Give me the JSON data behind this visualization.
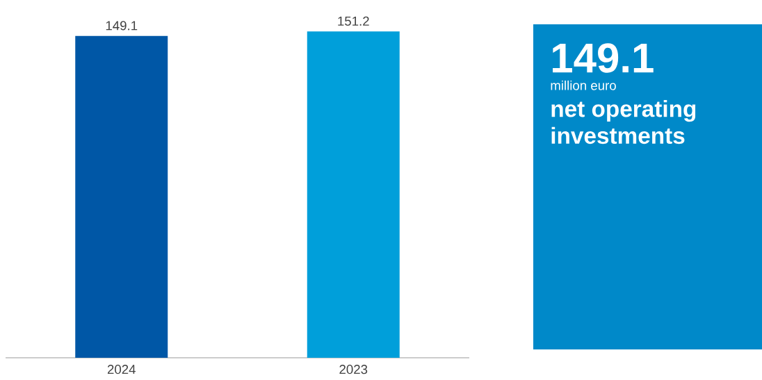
{
  "chart_data": [
    {
      "type": "bar",
      "categories": [
        "2024",
        "2023"
      ],
      "values": [
        149.1,
        151.2
      ],
      "colors": [
        "#0057a6",
        "#009fda"
      ],
      "value_labels": [
        "149.1",
        "151.2"
      ]
    },
    {
      "type": "other",
      "color": "#0089c9",
      "annotations": [
        "149.1",
        "million euro",
        "net operating investments"
      ]
    }
  ]
}
